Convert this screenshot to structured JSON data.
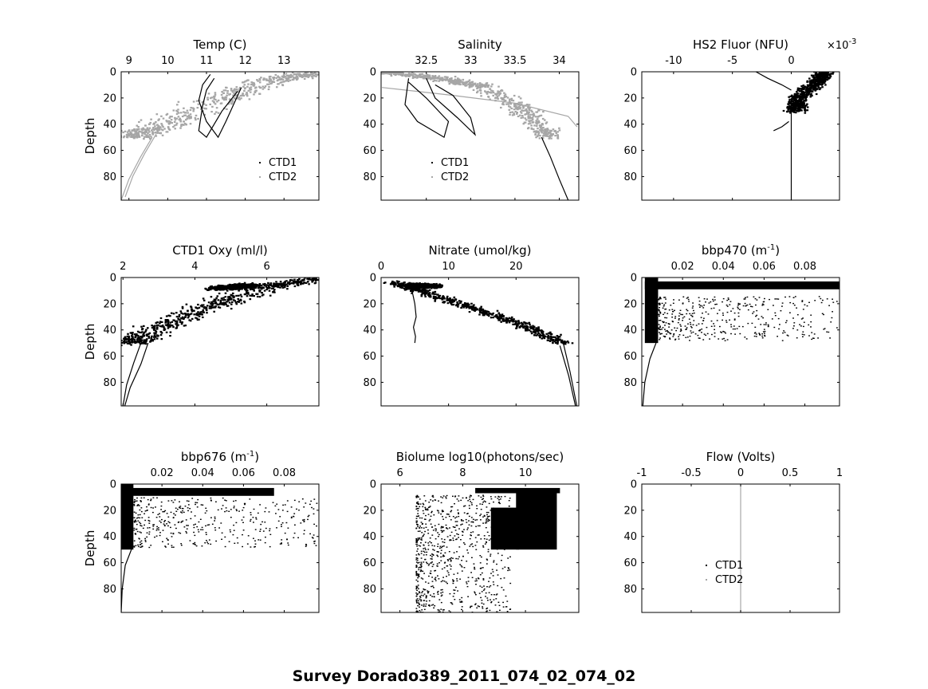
{
  "figure_title": "Survey Dorado389_2011_074_02_074_02",
  "colors": {
    "ctd1": "#000000",
    "ctd2": "#a6a6a6",
    "axis": "#000000",
    "background": "#ffffff"
  },
  "chart_data": [
    {
      "id": "temp",
      "type": "scatter",
      "title": "Temp (C)",
      "title_parts": [
        {
          "t": "Temp (C)"
        }
      ],
      "xlabel": "Temp (C)",
      "ylabel": "Depth",
      "xlim": [
        8.8,
        13.9
      ],
      "ylim": [
        0,
        98
      ],
      "xticks": [
        9,
        10,
        11,
        12,
        13
      ],
      "xtick_labels": [
        "9",
        "10",
        "11",
        "12",
        "13"
      ],
      "yticks": [
        0,
        20,
        40,
        60,
        80
      ],
      "ytick_labels": [
        "0",
        "20",
        "40",
        "60",
        "80"
      ],
      "legend": [
        "CTD1",
        "CTD2"
      ],
      "series": [
        {
          "name": "CTD2",
          "style": "cloud",
          "color": "#a6a6a6",
          "x": [
            13.9,
            12.8,
            11.4,
            9.6,
            9.0
          ],
          "y": [
            0,
            5,
            20,
            42,
            50
          ],
          "spread": 1.0
        },
        {
          "name": "CTD2",
          "style": "deep",
          "color": "#a6a6a6",
          "x": [
            9.6,
            9.3,
            9.0,
            8.8
          ],
          "y": [
            50,
            65,
            82,
            98
          ]
        },
        {
          "name": "CTD1",
          "style": "line",
          "color": "#000000",
          "x": [
            11.1,
            10.9,
            10.8,
            11.0,
            11.3,
            11.5,
            11.9
          ],
          "y": [
            2,
            10,
            22,
            38,
            50,
            38,
            12
          ]
        },
        {
          "name": "CTD1",
          "style": "line",
          "color": "#000000",
          "x": [
            11.2,
            11.0,
            10.9,
            10.8,
            11.0,
            11.4,
            11.8
          ],
          "y": [
            5,
            14,
            26,
            45,
            50,
            30,
            15
          ]
        }
      ]
    },
    {
      "id": "salinity",
      "type": "scatter",
      "title": "Salinity",
      "title_parts": [
        {
          "t": "Salinity"
        }
      ],
      "xlabel": "Salinity",
      "ylabel": "",
      "xlim": [
        31.99,
        34.22
      ],
      "ylim": [
        0,
        98
      ],
      "xticks": [
        32.5,
        33,
        33.5,
        34
      ],
      "xtick_labels": [
        "32.5",
        "33",
        "33.5",
        "34"
      ],
      "yticks": [
        0,
        20,
        40,
        60,
        80
      ],
      "ytick_labels": [
        "0",
        "20",
        "40",
        "60",
        "80"
      ],
      "legend": [
        "CTD1",
        "CTD2"
      ],
      "series": [
        {
          "name": "CTD2",
          "style": "cloud",
          "color": "#a6a6a6",
          "x": [
            32.0,
            32.6,
            33.1,
            33.6,
            33.9
          ],
          "y": [
            0,
            4,
            10,
            30,
            50
          ],
          "spread": 0.25
        },
        {
          "name": "CTD2",
          "style": "line",
          "color": "#a6a6a6",
          "x": [
            32.0,
            32.8,
            33.5,
            34.1,
            34.2
          ],
          "y": [
            12,
            18,
            24,
            34,
            42
          ]
        },
        {
          "name": "CTD1",
          "style": "line",
          "color": "#000000",
          "x": [
            33.8,
            33.9,
            34.0,
            34.1
          ],
          "y": [
            50,
            65,
            82,
            98
          ]
        },
        {
          "name": "CTD1",
          "style": "line",
          "color": "#000000",
          "x": [
            32.3,
            32.26,
            32.4,
            32.7,
            32.75,
            32.5,
            32.3
          ],
          "y": [
            5,
            25,
            38,
            50,
            38,
            20,
            8
          ]
        },
        {
          "name": "CTD1",
          "style": "line",
          "color": "#000000",
          "x": [
            32.5,
            32.6,
            32.85,
            33.05,
            33.0,
            32.8,
            32.6
          ],
          "y": [
            5,
            20,
            35,
            48,
            35,
            18,
            10
          ]
        }
      ]
    },
    {
      "id": "fluor",
      "type": "scatter",
      "title": "HS2 Fluor (NFU)",
      "title_parts": [
        {
          "t": "HS2 Fluor (NFU)"
        }
      ],
      "xlabel": "HS2 Fluor (NFU)",
      "ylabel": "",
      "xlim": [
        -0.0127,
        0.0041
      ],
      "ylim": [
        0,
        98
      ],
      "xticks": [
        -0.01,
        -0.005,
        0
      ],
      "xtick_labels": [
        "-10",
        "-5",
        "0"
      ],
      "exponent_label": "×10",
      "exponent_sup": "-3",
      "yticks": [
        0,
        20,
        40,
        60,
        80
      ],
      "ytick_labels": [
        "0",
        "20",
        "40",
        "60",
        "80"
      ],
      "legend": [],
      "series": [
        {
          "name": "CTD1",
          "style": "cloud",
          "color": "#000000",
          "x": [
            0.0028,
            0.002,
            0.0005,
            0.0003
          ],
          "y": [
            0,
            8,
            20,
            30
          ],
          "spread": 0.0012
        },
        {
          "name": "CTD1",
          "style": "line",
          "color": "#000000",
          "x": [
            0.0,
            0.0,
            0.0
          ],
          "y": [
            20,
            60,
            98
          ]
        },
        {
          "name": "CTD1",
          "style": "line",
          "color": "#000000",
          "x": [
            -0.003,
            -0.002,
            -0.0008,
            0.0
          ],
          "y": [
            0,
            5,
            10,
            14
          ]
        },
        {
          "name": "CTD1",
          "style": "line",
          "color": "#000000",
          "x": [
            -0.0015,
            -0.0008,
            -0.0002
          ],
          "y": [
            45,
            42,
            38
          ]
        }
      ]
    },
    {
      "id": "oxy",
      "type": "scatter",
      "title": "CTD1 Oxy (ml/l)",
      "title_parts": [
        {
          "t": "CTD1 Oxy (ml/l)"
        }
      ],
      "xlabel": "CTD1 Oxy (ml/l)",
      "ylabel": "Depth",
      "xlim": [
        1.95,
        7.45
      ],
      "ylim": [
        0,
        98
      ],
      "xticks": [
        2,
        4,
        6
      ],
      "xtick_labels": [
        "2",
        "4",
        "6"
      ],
      "yticks": [
        0,
        20,
        40,
        60,
        80
      ],
      "ytick_labels": [
        "0",
        "20",
        "40",
        "60",
        "80"
      ],
      "legend": [],
      "series": [
        {
          "name": "CTD1",
          "style": "cloud",
          "color": "#000000",
          "x": [
            7.4,
            5.8,
            4.0,
            2.6,
            2.2
          ],
          "y": [
            0,
            8,
            25,
            42,
            50
          ],
          "spread": 0.9
        },
        {
          "name": "CTD1",
          "style": "cloud",
          "color": "#000000",
          "x": [
            5.5,
            4.6
          ],
          "y": [
            5,
            8
          ],
          "spread": 0.6
        },
        {
          "name": "CTD1",
          "style": "line",
          "color": "#000000",
          "x": [
            2.5,
            2.3,
            2.1,
            2.0
          ],
          "y": [
            50,
            65,
            82,
            98
          ]
        },
        {
          "name": "CTD1",
          "style": "line",
          "color": "#000000",
          "x": [
            2.7,
            2.5,
            2.2,
            2.05
          ],
          "y": [
            50,
            66,
            84,
            98
          ]
        }
      ]
    },
    {
      "id": "nitrate",
      "type": "scatter",
      "title": "Nitrate (umol/kg)",
      "title_parts": [
        {
          "t": "Nitrate (umol/kg)"
        }
      ],
      "xlabel": "Nitrate (umol/kg)",
      "ylabel": "",
      "xlim": [
        0,
        29.3
      ],
      "ylim": [
        0,
        98
      ],
      "xticks": [
        0,
        10,
        20
      ],
      "xtick_labels": [
        "0",
        "10",
        "20"
      ],
      "yticks": [
        0,
        20,
        40,
        60,
        80
      ],
      "ytick_labels": [
        "0",
        "20",
        "40",
        "60",
        "80"
      ],
      "legend": [],
      "series": [
        {
          "name": "CTD1",
          "style": "cloud",
          "color": "#000000",
          "x": [
            1.5,
            6.0,
            13.0,
            20.0,
            27.0
          ],
          "y": [
            3,
            10,
            22,
            34,
            50
          ],
          "spread": 2.3
        },
        {
          "name": "CTD1",
          "style": "cloud",
          "color": "#000000",
          "x": [
            4.0,
            8.5
          ],
          "y": [
            5,
            6
          ],
          "spread": 1.0
        },
        {
          "name": "CTD1",
          "style": "line",
          "color": "#000000",
          "x": [
            27.0,
            28.0,
            29.0
          ],
          "y": [
            50,
            72,
            98
          ]
        },
        {
          "name": "CTD1",
          "style": "line",
          "color": "#000000",
          "x": [
            26.5,
            27.8,
            28.8
          ],
          "y": [
            52,
            75,
            98
          ]
        },
        {
          "name": "CTD1",
          "style": "line",
          "color": "#000000",
          "x": [
            4.5,
            5.0,
            5.2,
            4.8,
            5.1,
            5.0
          ],
          "y": [
            8,
            20,
            30,
            38,
            45,
            50
          ]
        }
      ]
    },
    {
      "id": "bbp470",
      "type": "scatter",
      "title": "bbp470 (m-1)",
      "title_parts": [
        {
          "t": "bbp470 (m"
        },
        {
          "t": "-1",
          "sup": true
        },
        {
          "t": ")"
        }
      ],
      "xlabel": "bbp470 (m-1)",
      "ylabel": "",
      "xlim": [
        0,
        0.097
      ],
      "ylim": [
        0,
        98
      ],
      "xticks": [
        0.02,
        0.04,
        0.06,
        0.08
      ],
      "xtick_labels": [
        "0.02",
        "0.04",
        "0.06",
        "0.08"
      ],
      "yticks": [
        0,
        20,
        40,
        60,
        80
      ],
      "ytick_labels": [
        "0",
        "20",
        "40",
        "60",
        "80"
      ],
      "legend": [],
      "series": [
        {
          "name": "CTD1",
          "style": "band",
          "color": "#000000",
          "x": [
            0.0015,
            0.097
          ],
          "y": [
            3,
            9
          ]
        },
        {
          "name": "CTD1",
          "style": "band",
          "color": "#000000",
          "x": [
            0.0015,
            0.008
          ],
          "y": [
            0,
            50
          ]
        },
        {
          "name": "CTD1",
          "style": "scatter",
          "color": "#000000",
          "x": [
            0.008,
            0.096
          ],
          "y": [
            14,
            48
          ]
        },
        {
          "name": "CTD1",
          "style": "line",
          "color": "#000000",
          "x": [
            0.007,
            0.004,
            0.0015,
            0.0005
          ],
          "y": [
            50,
            62,
            80,
            98
          ]
        }
      ]
    },
    {
      "id": "bbp676",
      "type": "scatter",
      "title": "bbp676 (m-1)",
      "title_parts": [
        {
          "t": "bbp676 (m"
        },
        {
          "t": "-1",
          "sup": true
        },
        {
          "t": ")"
        }
      ],
      "xlabel": "bbp676 (m-1)",
      "ylabel": "Depth",
      "xlim": [
        0,
        0.097
      ],
      "ylim": [
        0,
        98
      ],
      "xticks": [
        0.02,
        0.04,
        0.06,
        0.08
      ],
      "xtick_labels": [
        "0.02",
        "0.04",
        "0.06",
        "0.08"
      ],
      "yticks": [
        0,
        20,
        40,
        60,
        80
      ],
      "ytick_labels": [
        "0",
        "20",
        "40",
        "60",
        "80"
      ],
      "legend": [],
      "series": [
        {
          "name": "CTD1",
          "style": "band",
          "color": "#000000",
          "x": [
            0.0,
            0.075
          ],
          "y": [
            3,
            9
          ]
        },
        {
          "name": "CTD1",
          "style": "band",
          "color": "#000000",
          "x": [
            0.0,
            0.006
          ],
          "y": [
            0,
            50
          ]
        },
        {
          "name": "CTD1",
          "style": "scatter",
          "color": "#000000",
          "x": [
            0.006,
            0.096
          ],
          "y": [
            10,
            48
          ]
        },
        {
          "name": "CTD1",
          "style": "line",
          "color": "#000000",
          "x": [
            0.005,
            0.002,
            0.0005,
            0.0
          ],
          "y": [
            50,
            62,
            80,
            98
          ]
        }
      ]
    },
    {
      "id": "biolume",
      "type": "scatter",
      "title": "Biolume log10(photons/sec)",
      "title_parts": [
        {
          "t": "Biolume log10(photons/sec)"
        }
      ],
      "xlabel": "Biolume log10(photons/sec)",
      "ylabel": "",
      "xlim": [
        5.4,
        11.7
      ],
      "ylim": [
        0,
        98
      ],
      "xticks": [
        6,
        8,
        10
      ],
      "xtick_labels": [
        "6",
        "8",
        "10"
      ],
      "yticks": [
        0,
        20,
        40,
        60,
        80
      ],
      "ytick_labels": [
        "0",
        "20",
        "40",
        "60",
        "80"
      ],
      "legend": [],
      "series": [
        {
          "name": "CTD1",
          "style": "band",
          "color": "#000000",
          "x": [
            9.7,
            11.0
          ],
          "y": [
            5,
            50
          ]
        },
        {
          "name": "CTD1",
          "style": "band",
          "color": "#000000",
          "x": [
            8.9,
            9.8
          ],
          "y": [
            18,
            50
          ]
        },
        {
          "name": "CTD1",
          "style": "band",
          "color": "#000000",
          "x": [
            8.4,
            11.1
          ],
          "y": [
            3,
            7
          ]
        },
        {
          "name": "CTD1",
          "style": "scatter",
          "color": "#000000",
          "x": [
            6.5,
            9.5
          ],
          "y": [
            8,
            50
          ]
        },
        {
          "name": "CTD1",
          "style": "scatter",
          "color": "#000000",
          "x": [
            6.5,
            9.5
          ],
          "y": [
            50,
            98
          ]
        }
      ]
    },
    {
      "id": "flow",
      "type": "scatter",
      "title": "Flow (Volts)",
      "title_parts": [
        {
          "t": "Flow (Volts)"
        }
      ],
      "xlabel": "Flow (Volts)",
      "ylabel": "",
      "xlim": [
        -1,
        1
      ],
      "ylim": [
        0,
        98
      ],
      "xticks": [
        -1,
        -0.5,
        0,
        0.5,
        1
      ],
      "xtick_labels": [
        "-1",
        "-0.5",
        "0",
        "0.5",
        "1"
      ],
      "yticks": [
        0,
        20,
        40,
        60,
        80
      ],
      "ytick_labels": [
        "0",
        "20",
        "40",
        "60",
        "80"
      ],
      "legend": [
        "CTD1",
        "CTD2"
      ],
      "series": [
        {
          "name": "CTD2",
          "style": "line",
          "color": "#a6a6a6",
          "x": [
            0,
            0
          ],
          "y": [
            0,
            98
          ]
        }
      ]
    }
  ]
}
